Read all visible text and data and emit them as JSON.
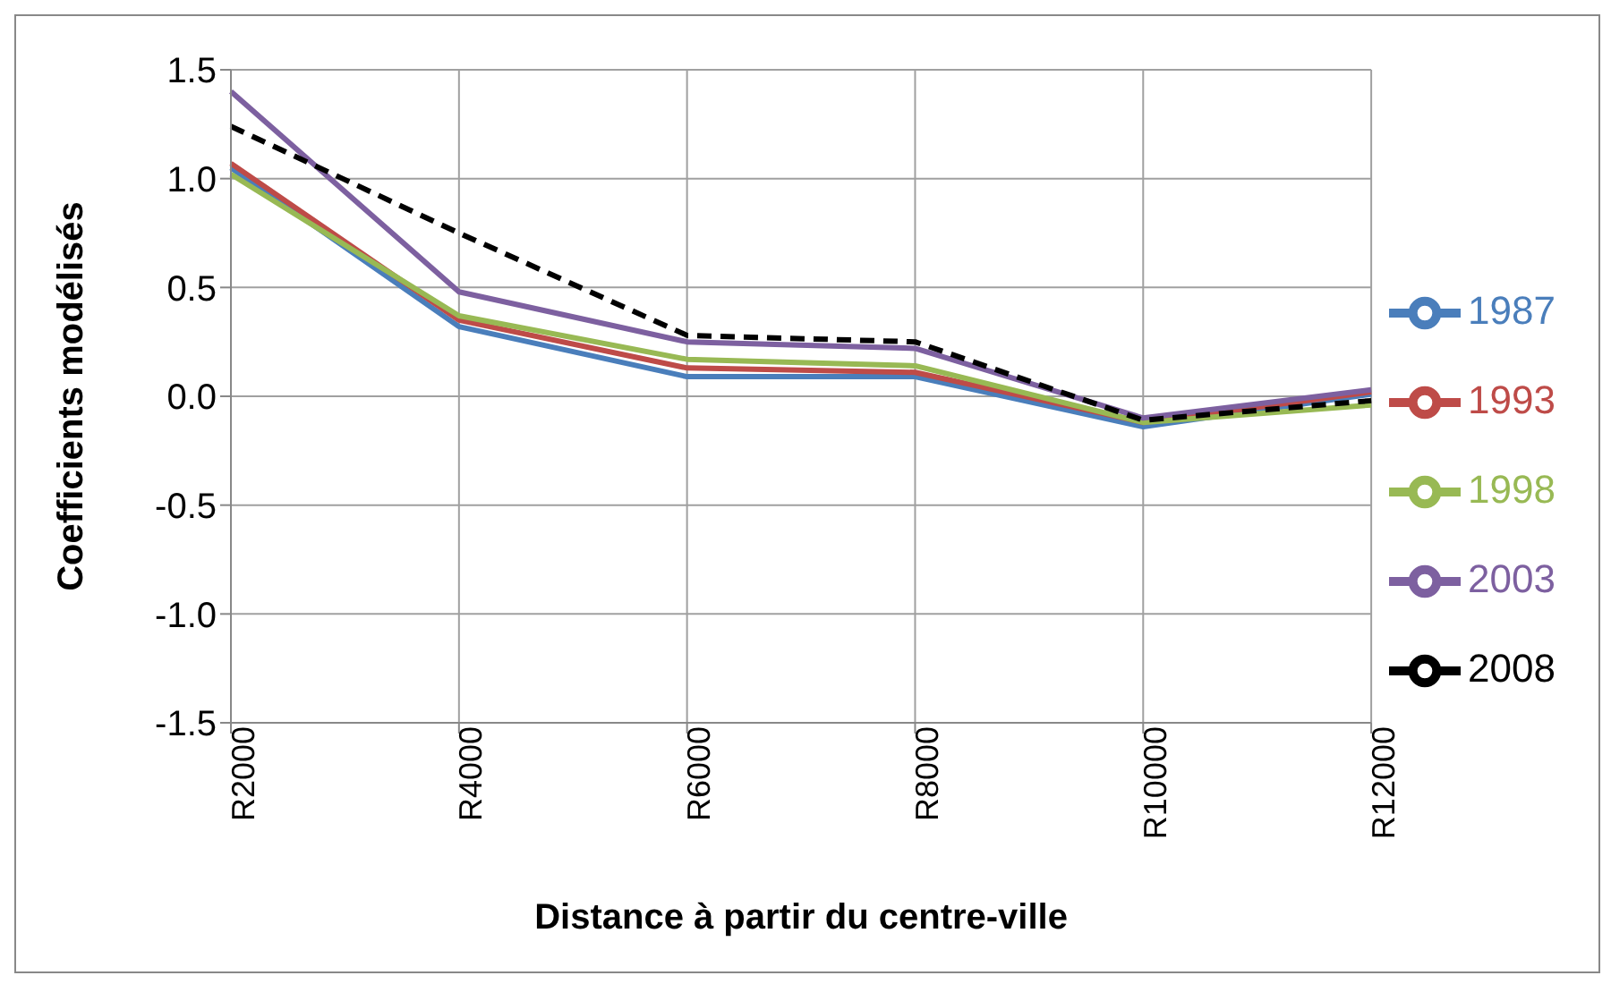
{
  "chart_data": {
    "type": "line",
    "xlabel": "Distance à partir du centre-ville",
    "ylabel": "Coefficients modélisés",
    "categories": [
      "R2000",
      "R4000",
      "R6000",
      "R8000",
      "R10000",
      "R12000"
    ],
    "series": [
      {
        "name": "1987",
        "color": "#4a7ebb",
        "values": [
          1.05,
          0.32,
          0.09,
          0.09,
          -0.14,
          0.01
        ]
      },
      {
        "name": "1993",
        "color": "#be4b48",
        "values": [
          1.07,
          0.35,
          0.13,
          0.11,
          -0.12,
          0.02
        ]
      },
      {
        "name": "1998",
        "color": "#98b954",
        "values": [
          1.02,
          0.37,
          0.17,
          0.14,
          -0.12,
          -0.04
        ]
      },
      {
        "name": "2003",
        "color": "#7d60a0",
        "values": [
          1.4,
          0.48,
          0.25,
          0.22,
          -0.1,
          0.03
        ]
      },
      {
        "name": "2008",
        "color": "#000000",
        "line_style": "dashed",
        "values": [
          1.24,
          0.75,
          0.28,
          0.25,
          -0.11,
          -0.02
        ]
      }
    ],
    "ylim": [
      -1.5,
      1.5
    ],
    "yticks": [
      {
        "value": -1.5,
        "label": "-1.5"
      },
      {
        "value": -1,
        "label": "-1.0"
      },
      {
        "value": -0.5,
        "label": "-0.5"
      },
      {
        "value": 0,
        "label": "0.0"
      },
      {
        "value": 0.5,
        "label": "0.5"
      },
      {
        "value": 1,
        "label": "1.0"
      },
      {
        "value": 1.5,
        "label": "1.5"
      }
    ],
    "grid": true,
    "legend": "right",
    "marker": "none"
  }
}
